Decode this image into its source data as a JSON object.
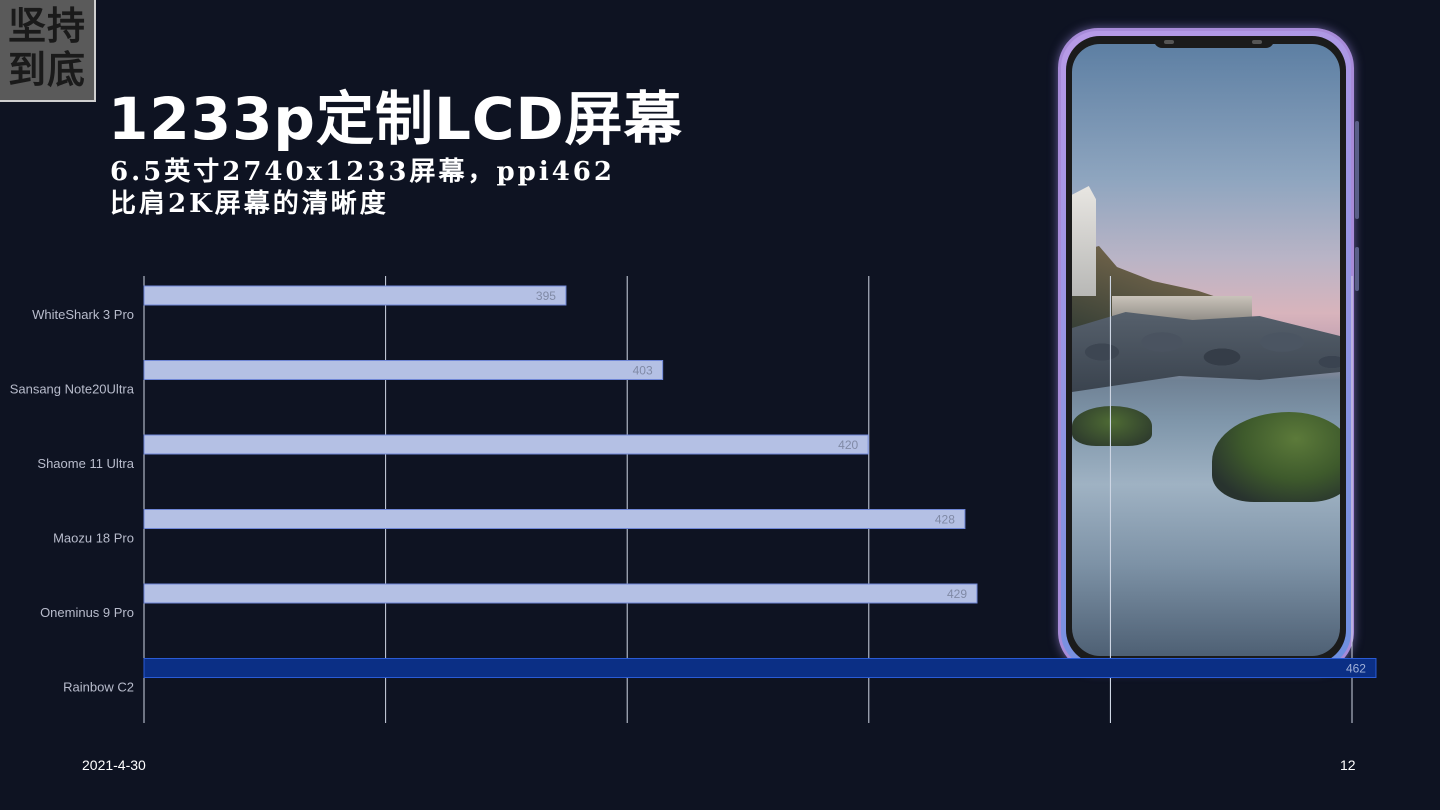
{
  "logo": {
    "line1": "坚持",
    "line2": "到底"
  },
  "title": "1233p定制LCD屏幕",
  "subtitle": {
    "line1": "6.5英寸2740x1233屏幕，ppi462",
    "line2": "比肩2K屏幕的清晰度"
  },
  "footer": {
    "date": "2021-4-30",
    "page": "12"
  },
  "colors": {
    "background": "#0e1322",
    "bar_default": "#b4c0e4",
    "bar_highlight": "#0b2f85",
    "phone_frame": "#a78bd8"
  },
  "chart_data": {
    "type": "bar",
    "orientation": "horizontal",
    "categories": [
      "WhiteShark 3 Pro",
      "Sansang Note20Ultra",
      "Shaome 11 Ultra",
      "Maozu 18 Pro",
      "Oneminus 9 Pro",
      "Rainbow C2"
    ],
    "values": [
      395,
      403,
      420,
      428,
      429,
      462
    ],
    "highlight_index": 5,
    "xlim": [
      362,
      462
    ],
    "grid": true,
    "data_labels": true
  }
}
